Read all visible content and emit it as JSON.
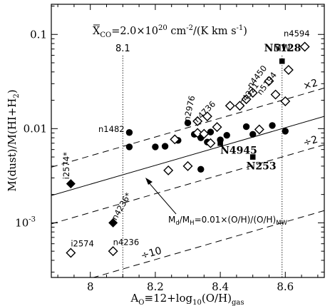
{
  "chart_data": {
    "type": "scatter",
    "xlabel": "Aₒ≡12+log₁₀(O/H)gas",
    "xlabel_parts": {
      "main": "A",
      "sub": "O",
      "eq": "≡12+log",
      "sub10": "10",
      "arg": "(O/H)",
      "gas": "gas"
    },
    "ylabel": "M(dust)/M(HI+H₂)",
    "ylabel_parts": {
      "left": "M(dust)/M(HI+H",
      "sub": "2",
      "right": ")"
    },
    "xlim": [
      7.88,
      8.72
    ],
    "ylim_log10": [
      -3.58,
      -0.68
    ],
    "x_ticks": [
      {
        "value": 8.0,
        "label": "8"
      },
      {
        "value": 8.2,
        "label": "8.2"
      },
      {
        "value": 8.4,
        "label": "8.4"
      },
      {
        "value": 8.6,
        "label": "8.6"
      }
    ],
    "y_ticks": [
      {
        "value": 0.1,
        "label": "0.1"
      },
      {
        "value": 0.01,
        "label": "0.01"
      },
      {
        "value": 0.001,
        "label": "10",
        "exp": "-3"
      }
    ],
    "annotation_top": {
      "prefix": "X",
      "sub": "CO",
      "rest": "=2.0×10",
      "exp": "20",
      "unit": " cm",
      "unitexp": "-2",
      "tail": "/(K km s",
      "tailexp": "-1",
      "end": ")"
    },
    "relation": {
      "prefix": "M",
      "sub_d": "d",
      "slash": "/M",
      "sub_h": "H",
      "body": "=0.01×(O/H)/(O/H)",
      "sub_mw": "MW"
    },
    "vertical_lines": [
      {
        "x": 8.1,
        "label": "8.1"
      },
      {
        "x": 8.59,
        "label": "MW"
      }
    ],
    "lines": [
      {
        "name": "",
        "factor": 1,
        "style": "solid"
      },
      {
        "name": "×2",
        "factor": 2,
        "style": "dashed"
      },
      {
        "name": "÷2",
        "factor": 0.5,
        "style": "dashed"
      },
      {
        "name": "÷10",
        "factor": 0.1,
        "style": "dashed"
      }
    ],
    "series": [
      {
        "marker": "filled-circle",
        "points": [
          {
            "x": 8.12,
            "y": 0.0091
          },
          {
            "x": 8.12,
            "y": 0.0064
          },
          {
            "x": 8.2,
            "y": 0.0064
          },
          {
            "x": 8.23,
            "y": 0.0065
          },
          {
            "x": 8.27,
            "y": 0.0075
          },
          {
            "x": 8.3,
            "y": 0.0115
          },
          {
            "x": 8.32,
            "y": 0.0087
          },
          {
            "x": 8.34,
            "y": 0.008
          },
          {
            "x": 8.36,
            "y": 0.0072
          },
          {
            "x": 8.37,
            "y": 0.0092
          },
          {
            "x": 8.4,
            "y": 0.0076
          },
          {
            "x": 8.42,
            "y": 0.0085
          },
          {
            "x": 8.48,
            "y": 0.0105
          },
          {
            "x": 8.5,
            "y": 0.0087
          },
          {
            "x": 8.56,
            "y": 0.0108
          },
          {
            "x": 8.6,
            "y": 0.0094
          },
          {
            "x": 8.34,
            "y": 0.0037
          }
        ]
      },
      {
        "marker": "open-diamond",
        "points": [
          {
            "x": 7.94,
            "y": 0.00048
          },
          {
            "x": 8.07,
            "y": 0.0005
          },
          {
            "x": 8.24,
            "y": 0.0036
          },
          {
            "x": 8.26,
            "y": 0.0077
          },
          {
            "x": 8.3,
            "y": 0.004
          },
          {
            "x": 8.33,
            "y": 0.009
          },
          {
            "x": 8.35,
            "y": 0.0088
          },
          {
            "x": 8.37,
            "y": 0.007
          },
          {
            "x": 8.33,
            "y": 0.012
          },
          {
            "x": 8.36,
            "y": 0.0135
          },
          {
            "x": 8.39,
            "y": 0.0104
          },
          {
            "x": 8.43,
            "y": 0.0175
          },
          {
            "x": 8.46,
            "y": 0.0175
          },
          {
            "x": 8.48,
            "y": 0.0205
          },
          {
            "x": 8.5,
            "y": 0.024
          },
          {
            "x": 8.52,
            "y": 0.0098
          },
          {
            "x": 8.55,
            "y": 0.032
          },
          {
            "x": 8.57,
            "y": 0.023
          },
          {
            "x": 8.61,
            "y": 0.042
          },
          {
            "x": 8.6,
            "y": 0.0195
          },
          {
            "x": 8.66,
            "y": 0.074
          }
        ]
      },
      {
        "marker": "filled-diamond",
        "points": [
          {
            "x": 7.94,
            "y": 0.0026
          },
          {
            "x": 8.07,
            "y": 0.001
          }
        ]
      },
      {
        "marker": "filled-square",
        "points": [
          {
            "x": 8.59,
            "y": 0.052
          },
          {
            "x": 8.4,
            "y": 0.007
          },
          {
            "x": 8.5,
            "y": 0.005
          }
        ]
      }
    ],
    "point_labels": [
      {
        "text": "n4594",
        "x": 8.595,
        "y": 0.095,
        "style": "normal",
        "anchor": "start",
        "rot": 0
      },
      {
        "text": "N5128",
        "x": 8.535,
        "y": 0.066,
        "style": "bold",
        "anchor": "start",
        "rot": 0
      },
      {
        "text": "n4450",
        "x": 8.495,
        "y": 0.0265,
        "style": "normal",
        "anchor": "start",
        "rot": -52
      },
      {
        "text": "n4321",
        "x": 8.47,
        "y": 0.0175,
        "style": "normal",
        "anchor": "start",
        "rot": -52
      },
      {
        "text": "n5194",
        "x": 8.525,
        "y": 0.0225,
        "style": "normal",
        "anchor": "start",
        "rot": -52
      },
      {
        "text": "n2976",
        "x": 8.305,
        "y": 0.0118,
        "style": "normal",
        "anchor": "start",
        "rot": -78
      },
      {
        "text": "n4736",
        "x": 8.33,
        "y": 0.0115,
        "style": "normal",
        "anchor": "start",
        "rot": -45
      },
      {
        "text": "n1482",
        "x": 8.105,
        "y": 0.0092,
        "style": "normal",
        "anchor": "end",
        "rot": 0
      },
      {
        "text": "N4945",
        "x": 8.4,
        "y": 0.0054,
        "style": "bold",
        "anchor": "start",
        "rot": 0
      },
      {
        "text": "N253",
        "x": 8.48,
        "y": 0.0037,
        "style": "bold",
        "anchor": "start",
        "rot": 0
      },
      {
        "text": "i2574*",
        "x": 7.935,
        "y": 0.0029,
        "style": "normal",
        "anchor": "start",
        "rot": -90
      },
      {
        "text": "n4236*",
        "x": 8.08,
        "y": 0.00105,
        "style": "normal",
        "anchor": "start",
        "rot": -60
      },
      {
        "text": "i2574",
        "x": 7.94,
        "y": 0.00056,
        "style": "normal",
        "anchor": "start",
        "rot": 0
      },
      {
        "text": "n4236",
        "x": 8.07,
        "y": 0.00058,
        "style": "normal",
        "anchor": "start",
        "rot": 0
      }
    ]
  }
}
